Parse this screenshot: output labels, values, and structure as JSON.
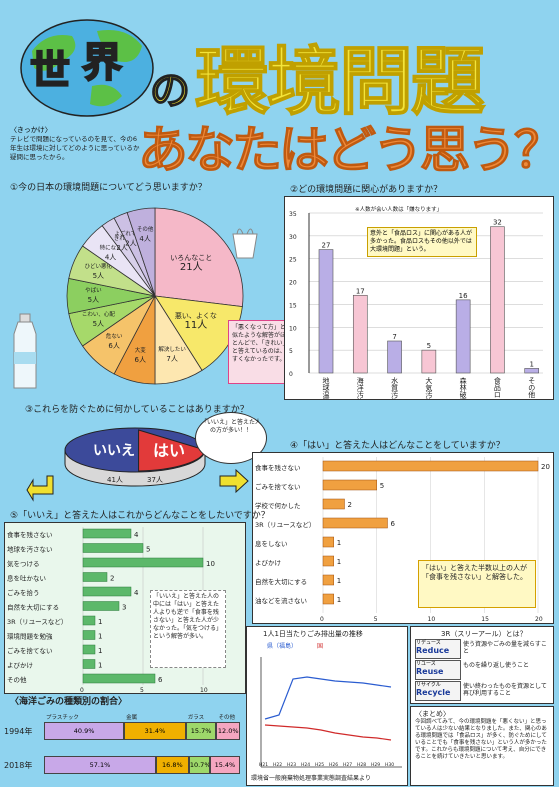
{
  "header": {
    "globe_word_1": "世",
    "globe_word_2": "界",
    "no": "の",
    "kankyo_mondai": "環境問題",
    "subtitle": "あなたはどう思う？",
    "kikkake_title": "〈きっかけ〉",
    "kikkake_text": "テレビで問題になっているのを見て、今の6年生は環境に対してどのように思っているか疑問に思ったから。"
  },
  "q1": {
    "title": "①今の日本の環境問題についてどう思いますか？",
    "slices": [
      {
        "label": "いろんなことが起きている",
        "value": 21,
        "value_label": "21人",
        "color": "#f5b8c8"
      },
      {
        "label": "悪い、よくない",
        "value": 11,
        "value_label": "11人",
        "color": "#f7e86a"
      },
      {
        "label": "解決したい",
        "value": 7,
        "value_label": "7人",
        "color": "#fde7b0"
      },
      {
        "label": "大変",
        "value": 6,
        "value_label": "6人",
        "color": "#f0a040"
      },
      {
        "label": "危ない",
        "value": 6,
        "value_label": "6人",
        "color": "#f5c36a"
      },
      {
        "label": "こわい、心配",
        "value": 5,
        "value_label": "5人",
        "color": "#a6d96a"
      },
      {
        "label": "やばい",
        "value": 5,
        "value_label": "5人",
        "color": "#8ccf60"
      },
      {
        "label": "ひどい悪化",
        "value": 5,
        "value_label": "5人",
        "color": "#c2e08a"
      },
      {
        "label": "特になし",
        "value": 4,
        "value_label": "4人",
        "color": "#e9e4f5"
      },
      {
        "label": "きれい",
        "value": 2,
        "value_label": "2人",
        "color": "#d8d0ea"
      },
      {
        "label": "よごれている",
        "value": 2,
        "value_label": "2人",
        "color": "#ccc0e4"
      },
      {
        "label": "その他",
        "value": 4,
        "value_label": "4人",
        "color": "#bfb0dd"
      }
    ],
    "note": "「悪くなって方」と似たような解答がほとんどで、「きれい」と答えているのは、すくなかったです。"
  },
  "q2": {
    "title": "②どの環境問題に関心がありますか？",
    "top_note": "※人数が会い人数は「嫌なります」",
    "ticks": [
      "35",
      "30",
      "25",
      "20",
      "15",
      "10",
      "5",
      "0"
    ],
    "bars": [
      {
        "label": "地球温暖化",
        "value": 27,
        "value_label": "27",
        "color": "#b9aee6"
      },
      {
        "label": "海洋汚染",
        "value": 17,
        "value_label": "17",
        "color": "#f7c6d4"
      },
      {
        "label": "水質汚染",
        "value": 7,
        "value_label": "7",
        "color": "#b9aee6"
      },
      {
        "label": "大気汚染",
        "value": 5,
        "value_label": "5",
        "color": "#f7c6d4"
      },
      {
        "label": "森林破壊",
        "value": 16,
        "value_label": "16",
        "color": "#b9aee6"
      },
      {
        "label": "食品ロス",
        "value": 32,
        "value_label": "32",
        "color": "#f7c6d4"
      },
      {
        "label": "その他",
        "value": 1,
        "value_label": "1",
        "color": "#b9aee6"
      }
    ],
    "note": "意外と「食品ロス」に関心がある人が多かった。食品ロスもその他以外では大環境問題」という。"
  },
  "q3": {
    "title": "③これらを防ぐために何かしていることはありますか？",
    "no_label": "いいえ",
    "yes_label": "はい",
    "no_value": "41人",
    "yes_value": "37人",
    "bubble": "「いいえ」と答えた人の方が多い！！"
  },
  "q4": {
    "title": "④「はい」と答えた人はどんなことをしていますか？",
    "items": [
      {
        "label": "食事を残さない",
        "value": 20,
        "value_label": "20"
      },
      {
        "label": "ごみを捨てない",
        "value": 5,
        "value_label": "5"
      },
      {
        "label": "学校で何かした",
        "value": 2,
        "value_label": "2"
      },
      {
        "label": "3R（リユースなど）",
        "value": 6,
        "value_label": "6"
      },
      {
        "label": "息をしない",
        "value": 1,
        "value_label": "1"
      },
      {
        "label": "よびかけ",
        "value": 1,
        "value_label": "1"
      },
      {
        "label": "自然を大切にする",
        "value": 1,
        "value_label": "1"
      },
      {
        "label": "油などを流さない",
        "value": 1,
        "value_label": "1"
      }
    ],
    "ticks": [
      "0",
      "5",
      "10",
      "15",
      "20"
    ],
    "note": "「はい」と答えた半数以上の人が「食事を残さない」と解答した。"
  },
  "q5": {
    "title": "⑤「いいえ」と答えた人はこれからどんなことをしたいですか？",
    "items": [
      {
        "label": "食事を残さない",
        "value": 4,
        "value_label": "4"
      },
      {
        "label": "地球を汚さない",
        "value": 5,
        "value_label": "5"
      },
      {
        "label": "気をつける",
        "value": 10,
        "value_label": "10"
      },
      {
        "label": "息を吐かない",
        "value": 2,
        "value_label": "2"
      },
      {
        "label": "ごみを拾う",
        "value": 4,
        "value_label": "4"
      },
      {
        "label": "自然を大切にする",
        "value": 3,
        "value_label": "3"
      },
      {
        "label": "3R（リユースなど）",
        "value": 1,
        "value_label": "1"
      },
      {
        "label": "環境問題を勉強",
        "value": 1,
        "value_label": "1"
      },
      {
        "label": "ごみを捨てない",
        "value": 1,
        "value_label": "1"
      },
      {
        "label": "よびかけ",
        "value": 1,
        "value_label": "1"
      },
      {
        "label": "その他",
        "value": 6,
        "value_label": "6"
      }
    ],
    "ticks": [
      "0",
      "5",
      "10"
    ],
    "note": "「いいえ」と答えた人の中には「はい」と答えた人よりも逆で「食事を残さない」と答えた人が少なかった。「気をつける」という解答が多い。"
  },
  "trash_chart": {
    "title": "1人1日当たりごみ排出量の推移",
    "legends": [
      "県（福島）",
      "国"
    ],
    "source": "環境省一般廃棄物処理事業実態調査結果より",
    "x_labels": [
      "H21",
      "H22",
      "H23",
      "H24",
      "H25",
      "H26",
      "H27",
      "H28",
      "H29",
      "H30"
    ]
  },
  "three_r": {
    "title": "3R（スリーアール）とは？",
    "rows": [
      {
        "head": "リデュース",
        "word": "Reduce",
        "desc": "使う資源やごみの量を減らすこと"
      },
      {
        "head": "リユース",
        "word": "Reuse",
        "desc": "ものを繰り返し使うこと"
      },
      {
        "head": "リサイクル",
        "word": "Recycle",
        "desc": "使い終わったものを資源として再び利用すること"
      }
    ]
  },
  "ocean": {
    "title": "〈海洋ごみの種類別の割合〉",
    "headers": [
      "プラスチック",
      "金属",
      "ガラス",
      "その他"
    ],
    "rows": [
      {
        "year": "1994年",
        "values": [
          "40.9%",
          "31.4%",
          "15.7%",
          "12.0%"
        ],
        "shares": [
          40.9,
          31.4,
          15.7,
          12.0
        ]
      },
      {
        "year": "2018年",
        "values": [
          "57.1%",
          "16.8%",
          "10.7%",
          "15.4%"
        ],
        "shares": [
          57.1,
          16.8,
          10.7,
          15.4
        ]
      }
    ],
    "colors": [
      "#c8a8e8",
      "#f0b000",
      "#9ed86a",
      "#f4a6c0"
    ]
  },
  "summary": {
    "title": "〈まとめ〉",
    "text": "今回調べてみて、今の環境問題を「悪くない」と思っている人は少ない結果となりました。また、関心のある環境問題では「食品ロス」が多く、防ぐためにしていることでも「食事を残さない」という人が多かったです。これからも環境問題について考え、自分にできることを続けていきたいと思います。"
  }
}
